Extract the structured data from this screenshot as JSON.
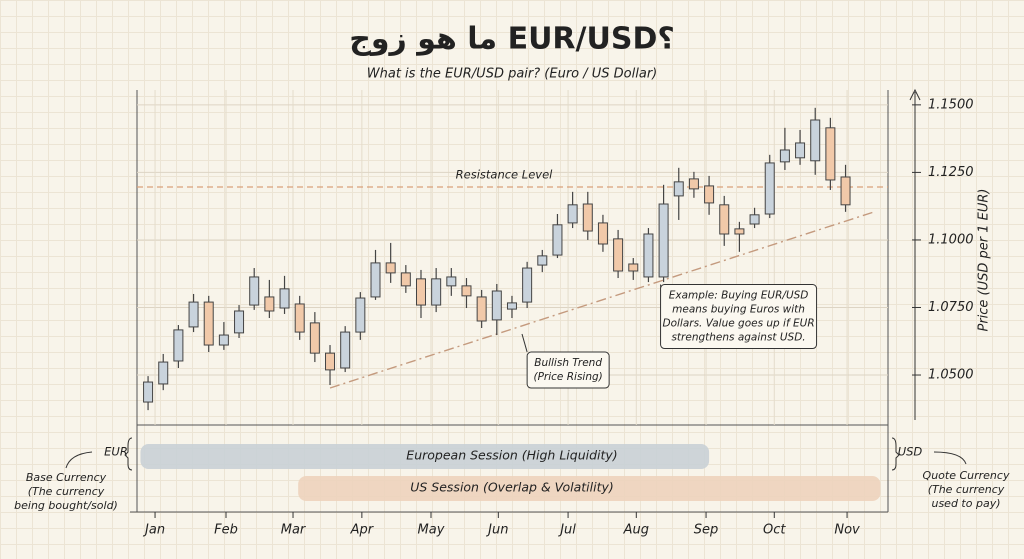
{
  "chart_data": {
    "type": "candlestick",
    "title": "ما هو زوج EUR/USD؟",
    "subtitle": "What is the EUR/USD pair? (Euro / US Dollar)",
    "y_label": "Price (USD per 1 EUR)",
    "up_color": "#c9d3dc",
    "down_color": "#f1c9a9",
    "x": [
      0,
      1,
      2,
      3,
      4,
      5,
      6,
      7,
      8,
      9,
      10,
      11,
      12,
      13,
      14,
      15,
      16,
      17,
      18,
      19,
      20,
      21,
      22,
      23,
      24,
      25,
      26,
      27,
      28,
      29,
      30,
      31,
      32,
      33,
      34,
      35,
      36,
      37,
      38,
      39,
      40,
      41,
      42,
      43,
      44,
      45,
      46
    ],
    "open": [
      1.04,
      1.0467,
      1.0552,
      1.0678,
      1.077,
      1.0611,
      1.0656,
      1.0759,
      1.0789,
      1.0748,
      1.0763,
      1.0693,
      1.0581,
      1.0526,
      1.0659,
      1.0789,
      1.0915,
      1.0878,
      1.0856,
      1.0759,
      1.083,
      1.083,
      1.0789,
      1.0704,
      1.0744,
      1.077,
      1.0907,
      1.0944,
      1.1063,
      1.1133,
      1.1063,
      1.1004,
      1.0911,
      1.0863,
      1.0863,
      1.1163,
      1.1226,
      1.12,
      1.113,
      1.1041,
      1.1059,
      1.1096,
      1.1289,
      1.1304,
      1.1293,
      1.1415,
      1.1233
    ],
    "high": [
      1.0496,
      1.0578,
      1.0685,
      1.08,
      1.0793,
      1.0696,
      1.0759,
      1.0896,
      1.0852,
      1.0867,
      1.0793,
      1.0733,
      1.0611,
      1.0681,
      1.0807,
      1.0963,
      1.0989,
      1.0907,
      1.0889,
      1.0896,
      1.0896,
      1.0859,
      1.0815,
      1.0837,
      1.0793,
      1.0919,
      1.0963,
      1.1096,
      1.1178,
      1.1178,
      1.1093,
      1.1037,
      1.0933,
      1.1044,
      1.1204,
      1.1267,
      1.1252,
      1.1237,
      1.1163,
      1.1067,
      1.1119,
      1.1315,
      1.1415,
      1.1407,
      1.1489,
      1.1452,
      1.1278
    ],
    "low": [
      1.037,
      1.0444,
      1.0526,
      1.0659,
      1.0585,
      1.0593,
      1.0637,
      1.0741,
      1.0711,
      1.0726,
      1.063,
      1.0548,
      1.0463,
      1.0511,
      1.063,
      1.0778,
      1.0841,
      1.0804,
      1.0711,
      1.0733,
      1.0793,
      1.0748,
      1.0674,
      1.0648,
      1.0711,
      1.0748,
      1.0881,
      1.0933,
      1.1044,
      1.1,
      1.0956,
      1.0859,
      1.0852,
      1.0844,
      1.0844,
      1.1074,
      1.1156,
      1.1093,
      1.0978,
      1.0956,
      1.1044,
      1.1081,
      1.1259,
      1.1278,
      1.1241,
      1.1185,
      1.1104
    ],
    "close": [
      1.0474,
      1.0548,
      1.0667,
      1.077,
      1.0611,
      1.0648,
      1.0737,
      1.0863,
      1.0737,
      1.0819,
      1.0659,
      1.0581,
      1.0519,
      1.0659,
      1.0785,
      1.0915,
      1.0878,
      1.083,
      1.0759,
      1.0856,
      1.0863,
      1.0793,
      1.07,
      1.0811,
      1.0767,
      1.0896,
      1.0941,
      1.1056,
      1.113,
      1.1033,
      1.0985,
      1.0885,
      1.0885,
      1.1022,
      1.1133,
      1.1215,
      1.1189,
      1.1137,
      1.1022,
      1.1022,
      1.1093,
      1.1285,
      1.1333,
      1.1359,
      1.1444,
      1.1222,
      1.113
    ],
    "xlim": [
      -0.73,
      48.8
    ],
    "xticks": [
      {
        "value": 0.46,
        "label": "Jan"
      },
      {
        "value": 5.14,
        "label": "Feb"
      },
      {
        "value": 9.56,
        "label": "Mar"
      },
      {
        "value": 14.1,
        "label": "Apr"
      },
      {
        "value": 18.66,
        "label": "May"
      },
      {
        "value": 23.1,
        "label": "Jun"
      },
      {
        "value": 27.7,
        "label": "Jul"
      },
      {
        "value": 32.2,
        "label": "Aug"
      },
      {
        "value": 36.8,
        "label": "Sep"
      },
      {
        "value": 41.3,
        "label": "Oct"
      },
      {
        "value": 46.1,
        "label": "Nov"
      }
    ],
    "ylim": [
      1.0315,
      1.1555
    ],
    "yticks": [
      {
        "value": 1.05,
        "label": "1.0500"
      },
      {
        "value": 1.075,
        "label": "1.0750"
      },
      {
        "value": 1.1,
        "label": "1.1000"
      },
      {
        "value": 1.125,
        "label": "1.1250"
      },
      {
        "value": 1.15,
        "label": "1.1500"
      }
    ],
    "grid": true,
    "resistance": {
      "label": "Resistance Level",
      "value": 1.1196,
      "color": "#d9a07a"
    },
    "trendline": {
      "x": [
        12,
        47.9
      ],
      "y": [
        1.0452,
        1.1104
      ],
      "color": "#c49a7e"
    },
    "annotations": [
      {
        "lines": [
          "Bullish Trend",
          "(Price Rising)"
        ],
        "x": 25,
        "y": 1.0585
      },
      {
        "lines": [
          "Example: Buying EUR/USD",
          "means buying Euros with",
          "Dollars. Value goes up if EUR",
          "strengthens against USD."
        ],
        "x": 33.8,
        "y": 1.0835
      }
    ],
    "sessions": [
      {
        "name": "European Session (High Liquidity)",
        "color": "#c9d0d6",
        "x": [
          -0.5,
          37.0
        ]
      },
      {
        "name": "US Session (Overlap & Volatility)",
        "color": "#edd3bd",
        "x": [
          9.9,
          48.3
        ]
      }
    ],
    "base": {
      "code": "EUR",
      "lines": [
        "Base Currency",
        "(The currency",
        "being bought/sold)"
      ]
    },
    "quote": {
      "code": "USD",
      "lines": [
        "Quote Currency",
        "(The currency",
        "used to pay)"
      ]
    }
  }
}
